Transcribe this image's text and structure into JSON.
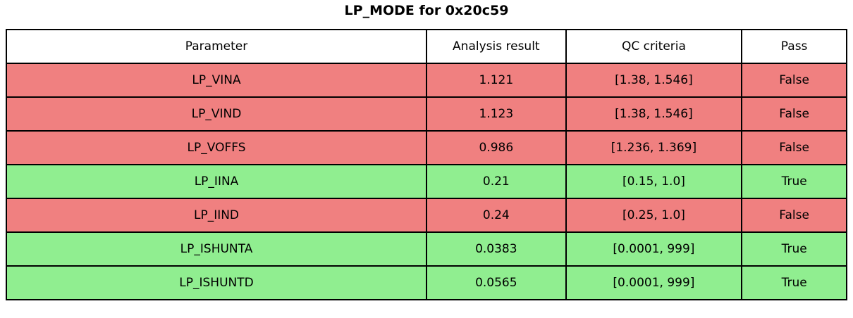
{
  "title": "LP_MODE for 0x20c59",
  "colors": {
    "pass_row": "#90EE90",
    "fail_row": "#F08080",
    "header_bg": "#FFFFFF",
    "border": "#000000",
    "text": "#000000",
    "background": "#FFFFFF"
  },
  "table": {
    "headers": [
      "Parameter",
      "Analysis result",
      "QC criteria",
      "Pass"
    ],
    "col_keys": [
      "parameter",
      "analysis-result",
      "qc-criteria",
      "pass"
    ],
    "col_widths_pct": [
      50.0,
      16.58,
      20.94,
      12.48
    ],
    "rows": [
      {
        "cells": [
          "LP_VINA",
          "1.121",
          "[1.38, 1.546]",
          "False"
        ],
        "pass": false
      },
      {
        "cells": [
          "LP_VIND",
          "1.123",
          "[1.38, 1.546]",
          "False"
        ],
        "pass": false
      },
      {
        "cells": [
          "LP_VOFFS",
          "0.986",
          "[1.236, 1.369]",
          "False"
        ],
        "pass": false
      },
      {
        "cells": [
          "LP_IINA",
          "0.21",
          "[0.15, 1.0]",
          "True"
        ],
        "pass": true
      },
      {
        "cells": [
          "LP_IIND",
          "0.24",
          "[0.25, 1.0]",
          "False"
        ],
        "pass": false
      },
      {
        "cells": [
          "LP_ISHUNTA",
          "0.0383",
          "[0.0001, 999]",
          "True"
        ],
        "pass": true
      },
      {
        "cells": [
          "LP_ISHUNTD",
          "0.0565",
          "[0.0001, 999]",
          "True"
        ],
        "pass": true
      }
    ]
  },
  "chart_data": {
    "type": "table",
    "title": "LP_MODE for 0x20c59",
    "columns": [
      "Parameter",
      "Analysis result",
      "QC criteria",
      "Pass"
    ],
    "rows": [
      {
        "parameter": "LP_VINA",
        "analysis_result": 1.121,
        "qc_criteria_low": 1.38,
        "qc_criteria_high": 1.546,
        "pass": false
      },
      {
        "parameter": "LP_VIND",
        "analysis_result": 1.123,
        "qc_criteria_low": 1.38,
        "qc_criteria_high": 1.546,
        "pass": false
      },
      {
        "parameter": "LP_VOFFS",
        "analysis_result": 0.986,
        "qc_criteria_low": 1.236,
        "qc_criteria_high": 1.369,
        "pass": false
      },
      {
        "parameter": "LP_IINA",
        "analysis_result": 0.21,
        "qc_criteria_low": 0.15,
        "qc_criteria_high": 1.0,
        "pass": true
      },
      {
        "parameter": "LP_IIND",
        "analysis_result": 0.24,
        "qc_criteria_low": 0.25,
        "qc_criteria_high": 1.0,
        "pass": false
      },
      {
        "parameter": "LP_ISHUNTA",
        "analysis_result": 0.0383,
        "qc_criteria_low": 0.0001,
        "qc_criteria_high": 999,
        "pass": true
      },
      {
        "parameter": "LP_ISHUNTD",
        "analysis_result": 0.0565,
        "qc_criteria_low": 0.0001,
        "qc_criteria_high": 999,
        "pass": true
      }
    ],
    "legend_position": "none",
    "grid": "cell-borders"
  }
}
